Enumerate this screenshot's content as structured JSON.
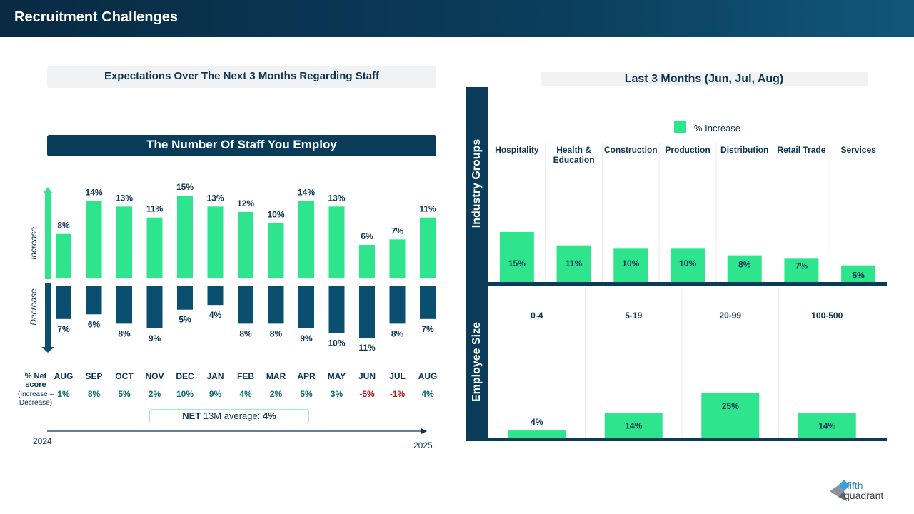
{
  "header": {
    "title": "Recruitment Challenges"
  },
  "left": {
    "subtitle": "Expectations Over The Next 3 Months Regarding Staff",
    "section_title": "The Number Of Staff You Employ",
    "increase_label": "Increase",
    "decrease_label": "Decrease",
    "net_label_line1": "% Net",
    "net_label_line2": "score",
    "net_label_line3": "(Increase –",
    "net_label_line4": "Decrease)",
    "net_avg_prefix": "NET",
    "net_avg_text": "13M average:",
    "net_avg_value": "4%",
    "year_start": "2024",
    "year_end": "2025"
  },
  "right": {
    "subtitle": "Last 3 Months (Jun, Jul, Aug)",
    "industry_label": "Industry Groups",
    "employee_label": "Employee Size",
    "legend_label": "% Increase"
  },
  "colors": {
    "increase": "#2ee58d",
    "decrease": "#0b4f70",
    "dark": "#0a3c5a",
    "negative": "#b01818",
    "net": "#0d6b6b"
  },
  "chart_data": [
    {
      "type": "bar",
      "title": "The Number Of Staff You Employ",
      "categories": [
        "AUG",
        "SEP",
        "OCT",
        "NOV",
        "DEC",
        "JAN",
        "FEB",
        "MAR",
        "APR",
        "MAY",
        "JUN",
        "JUL",
        "AUG"
      ],
      "series": [
        {
          "name": "Increase",
          "values": [
            8,
            14,
            13,
            11,
            15,
            13,
            12,
            10,
            14,
            13,
            6,
            7,
            11
          ]
        },
        {
          "name": "Decrease",
          "values": [
            7,
            6,
            8,
            9,
            5,
            4,
            8,
            8,
            9,
            10,
            11,
            8,
            7
          ]
        }
      ],
      "net_scores": [
        "1%",
        "8%",
        "5%",
        "2%",
        "10%",
        "9%",
        "4%",
        "2%",
        "5%",
        "3%",
        "-5%",
        "-1%",
        "4%"
      ],
      "value_suffix": "%"
    },
    {
      "type": "bar",
      "title": "Industry Groups",
      "categories": [
        "Hospitality",
        "Health & Education",
        "Construction",
        "Production",
        "Distribution",
        "Retail Trade",
        "Services"
      ],
      "series": [
        {
          "name": "% Increase",
          "values": [
            15,
            11,
            10,
            10,
            8,
            7,
            5
          ]
        }
      ],
      "value_suffix": "%"
    },
    {
      "type": "bar",
      "title": "Employee Size",
      "categories": [
        "0-4",
        "5-19",
        "20-99",
        "100-500"
      ],
      "series": [
        {
          "name": "% Increase",
          "values": [
            4,
            14,
            25,
            14
          ]
        }
      ],
      "value_suffix": "%"
    }
  ],
  "logo": {
    "line1": "fifth",
    "line2": "quadrant"
  }
}
